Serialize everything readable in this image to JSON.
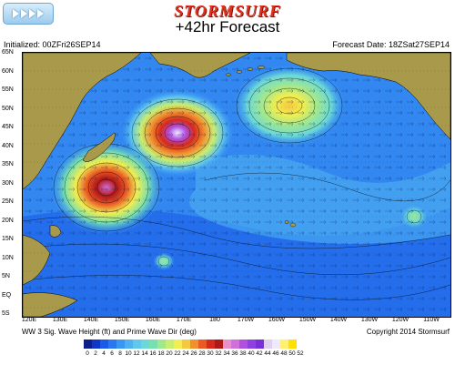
{
  "brand": "STORMSURF",
  "title": "+42hr Forecast",
  "initialized": "Initialized: 00ZFri26SEP14",
  "forecast_date": "Forecast Date: 18ZSat27SEP14",
  "legend_label": "WW 3 Sig. Wave Height (ft) and Prime Wave Dir (deg)",
  "copyright": "Copyright 2014 Stormsurf",
  "lat_labels": [
    "65N",
    "60N",
    "55N",
    "50N",
    "45N",
    "40N",
    "35N",
    "30N",
    "25N",
    "20N",
    "15N",
    "10N",
    "5N",
    "EQ",
    "5S"
  ],
  "lon_labels": [
    "120E",
    "130E",
    "140E",
    "150E",
    "160E",
    "170E",
    "180",
    "170W",
    "160W",
    "150W",
    "140W",
    "130W",
    "120W",
    "110W"
  ],
  "scale_values": [
    "0",
    "2",
    "4",
    "6",
    "8",
    "10",
    "12",
    "14",
    "16",
    "18",
    "20",
    "22",
    "24",
    "26",
    "28",
    "30",
    "32",
    "34",
    "36",
    "38",
    "40",
    "42",
    "44",
    "46",
    "48",
    "50",
    "52"
  ],
  "scale_colors": [
    "#0a1e8c",
    "#1036c8",
    "#1a5ae6",
    "#2a78f0",
    "#3a96f2",
    "#4fb0f2",
    "#5fc6ee",
    "#6ad8d8",
    "#78e0b0",
    "#a0e890",
    "#c8ee70",
    "#f0ee50",
    "#f6c840",
    "#f29030",
    "#ea5a24",
    "#d62a1c",
    "#b01818",
    "#e890c8",
    "#d070d8",
    "#b050e0",
    "#9040e0",
    "#7a30d8",
    "#e0d0f0",
    "#f0e8ff",
    "#fff070",
    "#ffe000"
  ],
  "nav": {
    "label": "play controls"
  }
}
